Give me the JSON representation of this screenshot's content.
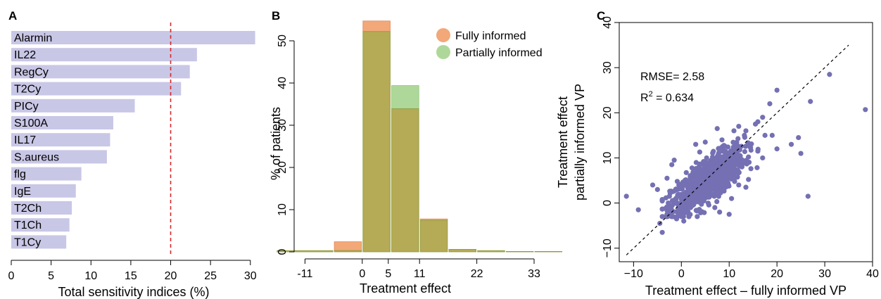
{
  "chart_data": [
    {
      "panel_label": "A",
      "type": "bar",
      "orientation": "horizontal",
      "categories": [
        "Alarmin",
        "IL22",
        "RegCy",
        "T2Cy",
        "PICy",
        "S100A",
        "IL17",
        "S.aureus",
        "flg",
        "IgE",
        "T2Ch",
        "T1Ch",
        "T1Cy"
      ],
      "values": [
        30.6,
        23.3,
        22.4,
        21.3,
        15.5,
        12.8,
        12.4,
        12.0,
        8.8,
        8.1,
        7.6,
        7.3,
        6.9
      ],
      "xlabel": "Total sensitivity indices (%)",
      "ylabel": "",
      "xlim": [
        0,
        31
      ],
      "xticks": [
        "0",
        "5",
        "10",
        "15",
        "20",
        "25",
        "30"
      ],
      "reference_line": {
        "x": 20,
        "style": "dashed",
        "color": "#d62728"
      },
      "bar_color": "#c9c7e6"
    },
    {
      "panel_label": "B",
      "type": "bar",
      "subtype": "overlaid-histogram",
      "bins": [
        [
          -16.5,
          -5.5
        ],
        [
          -5.5,
          0
        ],
        [
          0,
          5.5
        ],
        [
          5.5,
          11
        ],
        [
          11,
          16.5
        ],
        [
          16.5,
          22
        ],
        [
          22,
          27.5
        ],
        [
          27.5,
          33
        ],
        [
          33,
          38.5
        ]
      ],
      "series": [
        {
          "name": "Fully informed",
          "color": "#f2a878",
          "values": [
            0.3,
            2.4,
            54.7,
            33.9,
            7.8,
            0.6,
            0.3,
            0.1,
            0.1
          ]
        },
        {
          "name": "Partially informed",
          "color": "#aed89a",
          "values": [
            0.3,
            0.3,
            52.2,
            39.4,
            7.5,
            0.6,
            0.3,
            0.1,
            0.1
          ]
        }
      ],
      "overlap_color": "#b5aa55",
      "xlabel": "Treatment effect",
      "ylabel": "% of patients",
      "xlim": [
        -12,
        38
      ],
      "ylim": [
        0,
        55
      ],
      "xticks": [
        "-11",
        "0",
        "5",
        "11",
        "22",
        "33"
      ],
      "yticks": [
        "0",
        "10",
        "20",
        "30",
        "40",
        "50"
      ],
      "legend": "top-right"
    },
    {
      "panel_label": "C",
      "type": "scatter",
      "xlabel": "Treatment effect – fully informed VP",
      "ylabel_line1": "Treatment effect",
      "ylabel_line2": "partially informed VP",
      "xlim": [
        -13,
        40
      ],
      "ylim": [
        -13,
        40
      ],
      "xticks": [
        "−10",
        "0",
        "10",
        "20",
        "30",
        "40"
      ],
      "yticks": [
        "−10",
        "0",
        "10",
        "20",
        "30",
        "40"
      ],
      "identity_line": true,
      "point_color": "#7470b3",
      "annotation_rmse": "RMSE= 2.58",
      "annotation_r2_prefix": "R",
      "annotation_r2_sup": "2",
      "annotation_r2_value": " = 0.634",
      "cloud": {
        "count": 950,
        "x_mean": 5.5,
        "x_sd": 3.8,
        "slope": 0.72,
        "intercept": 1.0,
        "noise_sd": 2.3
      },
      "outliers": [
        [
          38.5,
          20.7
        ],
        [
          31.0,
          28.5
        ],
        [
          27.0,
          22.5
        ],
        [
          26.5,
          1.5
        ],
        [
          25.0,
          11.0
        ],
        [
          24.5,
          14.5
        ],
        [
          20.0,
          25.0
        ],
        [
          18.5,
          22.0
        ],
        [
          17.0,
          19.0
        ],
        [
          16.0,
          18.0
        ],
        [
          15.5,
          17.5
        ],
        [
          20.0,
          12.0
        ],
        [
          17.0,
          10.0
        ],
        [
          16.0,
          11.5
        ],
        [
          -11.5,
          1.5
        ],
        [
          -9.0,
          -1.5
        ],
        [
          -6.0,
          4.0
        ],
        [
          -5.0,
          3.0
        ],
        [
          -4.0,
          -6.5
        ],
        [
          -4.5,
          -4.5
        ],
        [
          -3.0,
          -2.5
        ],
        [
          -3.0,
          5.5
        ],
        [
          -2.0,
          8.5
        ],
        [
          -1.5,
          9.5
        ],
        [
          -2.5,
          1.5
        ],
        [
          8.0,
          -2.0
        ],
        [
          7.0,
          -1.0
        ],
        [
          10.0,
          -2.5
        ],
        [
          7.5,
          16.5
        ],
        [
          8.5,
          14.0
        ],
        [
          11.0,
          16.0
        ],
        [
          12.0,
          17.0
        ],
        [
          13.5,
          16.0
        ],
        [
          3.0,
          13.0
        ],
        [
          5.0,
          13.5
        ],
        [
          12.0,
          4.0
        ],
        [
          13.5,
          3.5
        ],
        [
          10.5,
          1.0
        ],
        [
          -1.0,
          -3.5
        ],
        [
          0.5,
          -4.0
        ],
        [
          23.0,
          13.0
        ],
        [
          19.0,
          15.0
        ]
      ]
    }
  ]
}
